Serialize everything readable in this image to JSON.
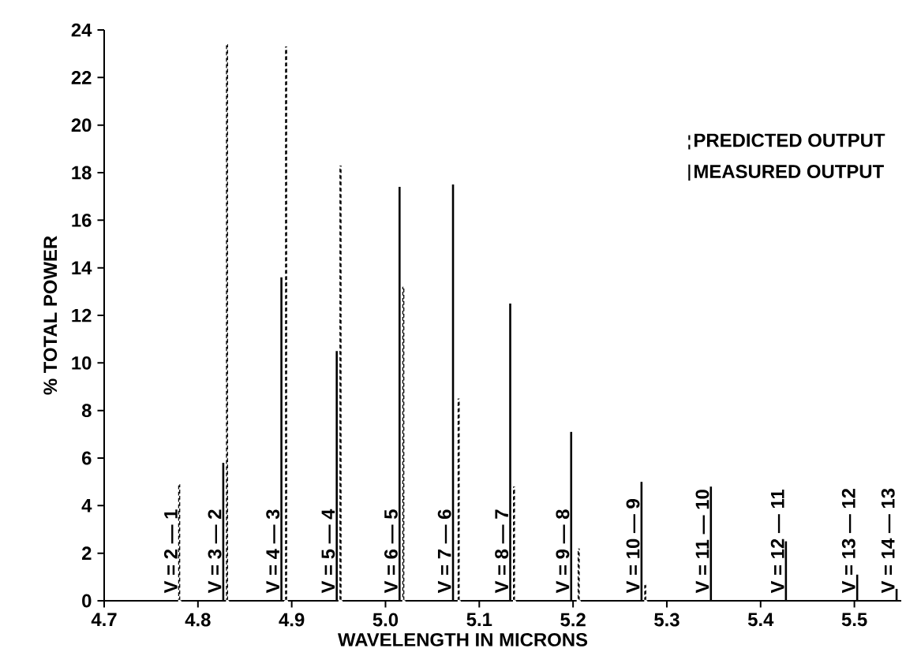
{
  "chart_data": {
    "type": "bar",
    "xlabel": "WAVELENGTH IN MICRONS",
    "ylabel": "% TOTAL POWER",
    "xlim": [
      4.7,
      5.55
    ],
    "ylim": [
      0,
      24
    ],
    "xticks": [
      4.7,
      4.8,
      4.9,
      {
        "value": 5.0,
        "label": "5.0"
      },
      5.1,
      5.2,
      5.3,
      5.4,
      5.5
    ],
    "yticks": [
      0,
      2,
      4,
      6,
      8,
      10,
      12,
      14,
      16,
      18,
      20,
      22,
      24
    ],
    "legend": "top right",
    "grid": false,
    "series": [
      {
        "name": "PREDICTED OUTPUT",
        "color": "#000000",
        "line_style": "dashed",
        "x": [
          4.78,
          4.831,
          4.894,
          4.952,
          5.019,
          5.078,
          5.137,
          5.206,
          5.277
        ],
        "values": [
          4.9,
          23.4,
          23.3,
          18.3,
          13.2,
          8.5,
          4.8,
          2.2,
          0.7
        ]
      },
      {
        "name": "MEASURED OUTPUT",
        "color": "#000000",
        "line_style": "solid",
        "x": [
          4.827,
          4.889,
          4.948,
          5.015,
          5.072,
          5.133,
          5.198,
          5.273,
          5.347,
          5.427,
          5.503,
          5.545
        ],
        "values": [
          5.8,
          13.6,
          10.5,
          17.4,
          17.5,
          12.5,
          7.1,
          5.0,
          4.8,
          2.5,
          1.1,
          0.5
        ]
      }
    ],
    "annotations": [
      "V = 2 — 1",
      "V = 3 — 2",
      "V = 4 — 3",
      "V = 5 — 4",
      "V = 6 — 5",
      "V = 7 — 6",
      "V = 8 — 7",
      "V = 9 — 8",
      "V = 10 — 9",
      "V = 11 — 10",
      "V = 12 — 11",
      "V = 13 — 12",
      "V = 14 — 13"
    ]
  }
}
